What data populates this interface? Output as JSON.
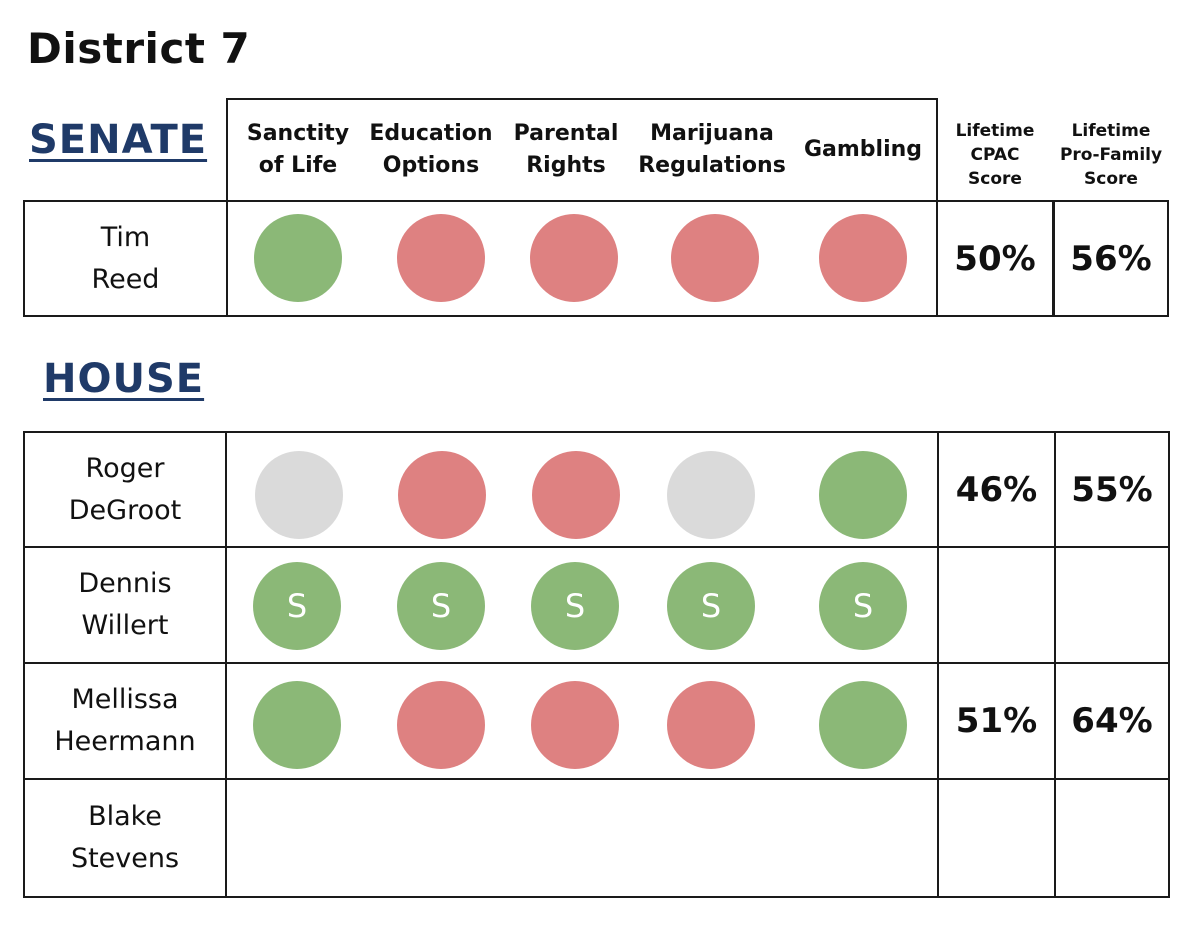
{
  "title": "District 7",
  "senate": {
    "heading": "SENATE",
    "columns": [
      {
        "lines": [
          "Sanctity",
          "of Life"
        ]
      },
      {
        "lines": [
          "Education",
          "Options"
        ]
      },
      {
        "lines": [
          "Parental",
          "Rights"
        ]
      },
      {
        "lines": [
          "Marijuana",
          "Regulations"
        ]
      },
      {
        "lines": [
          "Gambling"
        ]
      }
    ],
    "score_headers": [
      {
        "lines": [
          "Lifetime",
          "CPAC",
          "Score"
        ]
      },
      {
        "lines": [
          "Lifetime",
          "Pro-Family",
          "Score"
        ]
      }
    ],
    "rows": [
      {
        "name_lines": [
          "Tim",
          "Reed"
        ],
        "votes": [
          "green",
          "red",
          "red",
          "red",
          "red"
        ],
        "cpac": "50%",
        "pro_family": "56%"
      }
    ]
  },
  "house": {
    "heading": "HOUSE",
    "rows": [
      {
        "name_lines": [
          "Roger",
          "DeGroot"
        ],
        "votes": [
          "gray",
          "red",
          "red",
          "gray",
          "green"
        ],
        "cpac": "46%",
        "pro_family": "55%"
      },
      {
        "name_lines": [
          "Dennis",
          "Willert"
        ],
        "votes": [
          "green",
          "green",
          "green",
          "green",
          "green"
        ],
        "vote_marks": [
          "S",
          "S",
          "S",
          "S",
          "S"
        ],
        "cpac": "",
        "pro_family": ""
      },
      {
        "name_lines": [
          "Mellissa",
          "Heermann"
        ],
        "votes": [
          "green",
          "red",
          "red",
          "red",
          "green"
        ],
        "cpac": "51%",
        "pro_family": "64%"
      },
      {
        "name_lines": [
          "Blake",
          "Stevens"
        ],
        "votes": [],
        "cpac": "",
        "pro_family": ""
      }
    ]
  },
  "colors": {
    "green": "#8bb877",
    "red": "#de8181",
    "gray": "#dadada",
    "heading_blue": "#1f3a68"
  }
}
